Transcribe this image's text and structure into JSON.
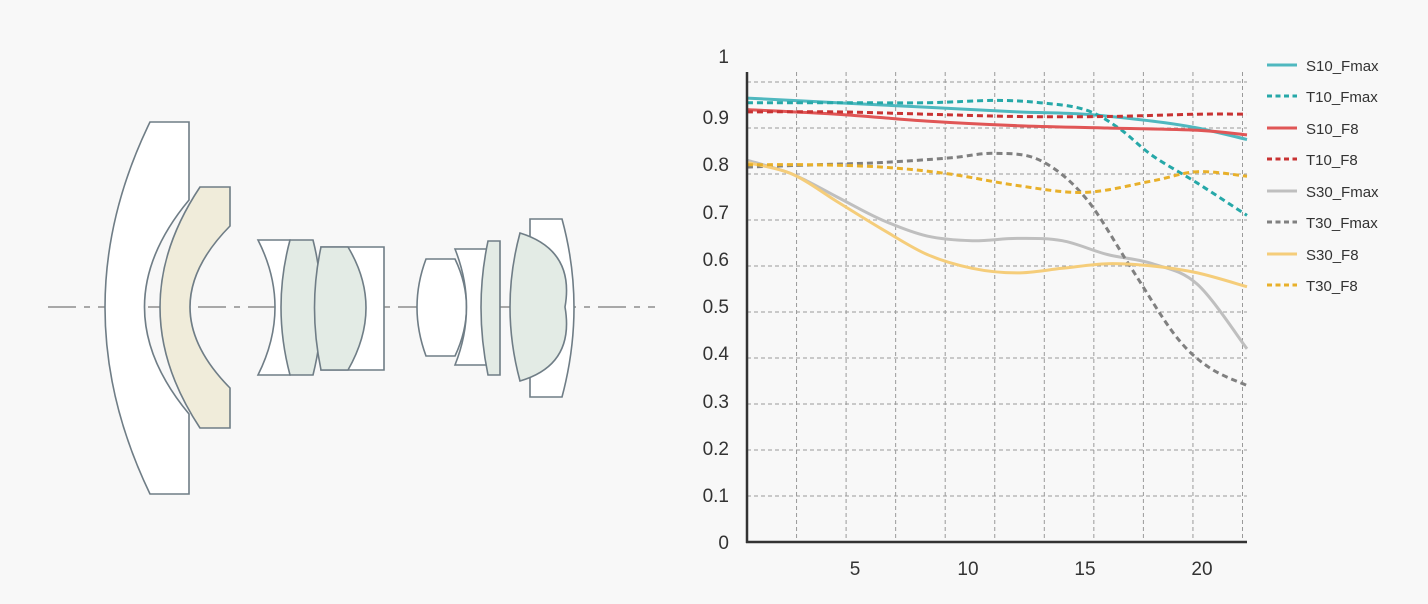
{
  "colors": {
    "background": "#f8f8f8",
    "lens_stroke": "#6f7d86",
    "lens_white": "#ffffff",
    "lens_cream": "#f0ecda",
    "lens_green": "#e3ebe5",
    "axis": "#333333",
    "grid": "#9a9a9a"
  },
  "chart_data": {
    "type": "line",
    "title": "",
    "xlabel": "",
    "ylabel": "",
    "xlim": [
      0,
      22.2
    ],
    "ylim": [
      0,
      1
    ],
    "xticks": [
      "5",
      "10",
      "15",
      "20"
    ],
    "yticks": [
      "0",
      "0.1",
      "0.2",
      "0.3",
      "0.4",
      "0.5",
      "0.6",
      "0.7",
      "0.8",
      "0.9",
      "1"
    ],
    "grid": true,
    "legend_position": "right",
    "series": [
      {
        "name": "S10_Fmax",
        "color": "#4fb8bf",
        "dash": false,
        "x": [
          0,
          4,
          8,
          12,
          15,
          18,
          20,
          22.2
        ],
        "y": [
          0.965,
          0.955,
          0.945,
          0.935,
          0.93,
          0.915,
          0.9,
          0.875
        ]
      },
      {
        "name": "T10_Fmax",
        "color": "#26a8a8",
        "dash": true,
        "x": [
          0,
          4,
          8,
          11,
          13,
          15,
          16.5,
          18,
          20,
          22.2
        ],
        "y": [
          0.955,
          0.955,
          0.955,
          0.96,
          0.955,
          0.94,
          0.9,
          0.84,
          0.78,
          0.71
        ]
      },
      {
        "name": "S10_F8",
        "color": "#e05656",
        "dash": false,
        "x": [
          0,
          4,
          8,
          12,
          16,
          20,
          22.2
        ],
        "y": [
          0.94,
          0.93,
          0.915,
          0.905,
          0.9,
          0.895,
          0.885
        ]
      },
      {
        "name": "T10_F8",
        "color": "#c83232",
        "dash": true,
        "x": [
          0,
          4,
          8,
          12,
          16,
          20,
          22.2
        ],
        "y": [
          0.935,
          0.935,
          0.93,
          0.925,
          0.925,
          0.93,
          0.93
        ]
      },
      {
        "name": "S30_Fmax",
        "color": "#bfbfbf",
        "dash": false,
        "x": [
          0,
          2,
          4,
          6,
          8,
          10,
          12,
          14,
          16,
          18,
          20,
          22.2
        ],
        "y": [
          0.83,
          0.8,
          0.75,
          0.7,
          0.665,
          0.655,
          0.66,
          0.655,
          0.625,
          0.605,
          0.56,
          0.42
        ]
      },
      {
        "name": "T30_Fmax",
        "color": "#808080",
        "dash": true,
        "x": [
          0,
          3,
          6,
          9,
          11,
          13,
          15,
          17,
          19,
          20.5,
          22.2
        ],
        "y": [
          0.815,
          0.82,
          0.825,
          0.835,
          0.845,
          0.83,
          0.75,
          0.6,
          0.45,
          0.38,
          0.34
        ]
      },
      {
        "name": "S30_F8",
        "color": "#f5cd7a",
        "dash": false,
        "x": [
          0,
          2,
          4,
          6,
          8,
          10,
          12,
          14,
          16,
          18,
          20,
          22.2
        ],
        "y": [
          0.825,
          0.8,
          0.74,
          0.68,
          0.625,
          0.595,
          0.585,
          0.595,
          0.605,
          0.6,
          0.585,
          0.555
        ]
      },
      {
        "name": "T30_F8",
        "color": "#e8b02a",
        "dash": true,
        "x": [
          0,
          3,
          6,
          9,
          12,
          15,
          18,
          20,
          22.2
        ],
        "y": [
          0.82,
          0.82,
          0.815,
          0.8,
          0.775,
          0.76,
          0.785,
          0.805,
          0.795
        ]
      }
    ]
  }
}
